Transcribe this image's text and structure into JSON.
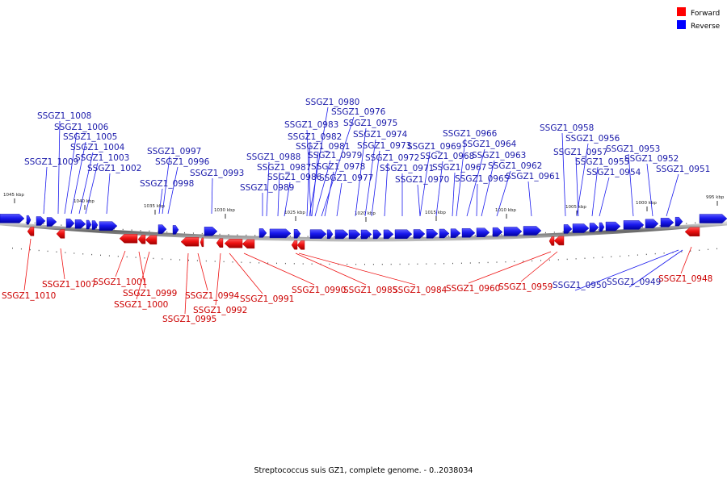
{
  "caption": "Streptococcus suis GZ1, complete genome. - 0..2038034",
  "legend": [
    {
      "label": "Forward",
      "color": "#ff0000"
    },
    {
      "label": "Reverse",
      "color": "#0000ff"
    }
  ],
  "colors": {
    "forward": "#ee1111",
    "reverse": "#1a1aee",
    "forward_label": "#cc0000",
    "reverse_label": "#1a1aaa",
    "backbone": "#777777"
  },
  "scale_ticks": [
    "1045 kbp",
    "1040 kbp",
    "1035 kbp",
    "1030 kbp",
    "1025 kbp",
    "1020 kbp",
    "1015 kbp",
    "1010 kbp",
    "1005 kbp",
    "1000 kbp",
    "995 kbp"
  ],
  "reverse_labels": [
    "SSGZ1_1008",
    "SSGZ1_1006",
    "SSGZ1_1005",
    "SSGZ1_1004",
    "SSGZ1_1003",
    "SSGZ1_1009",
    "SSGZ1_1002",
    "SSGZ1_0997",
    "SSGZ1_0996",
    "SSGZ1_0998",
    "SSGZ1_0993",
    "SSGZ1_0980",
    "SSGZ1_0976",
    "SSGZ1_0983",
    "SSGZ1_0975",
    "SSGZ1_0982",
    "SSGZ1_0974",
    "SSGZ1_0981",
    "SSGZ1_0973",
    "SSGZ1_0988",
    "SSGZ1_0979",
    "SSGZ1_0972",
    "SSGZ1_0969",
    "SSGZ1_0968",
    "SSGZ1_0987",
    "SSGZ1_0978",
    "SSGZ1_0971",
    "SSGZ1_0967",
    "SSGZ1_0986",
    "SSGZ1_0977",
    "SSGZ1_0970",
    "SSGZ1_0965",
    "SSGZ1_0989",
    "SSGZ1_0966",
    "SSGZ1_0964",
    "SSGZ1_0963",
    "SSGZ1_0962",
    "SSGZ1_0961",
    "SSGZ1_0958",
    "SSGZ1_0956",
    "SSGZ1_0957",
    "SSGZ1_0953",
    "SSGZ1_0955",
    "SSGZ1_0952",
    "SSGZ1_0954",
    "SSGZ1_0951",
    "SSGZ1_0950",
    "SSGZ1_0949"
  ],
  "forward_labels": [
    "SSGZ1_1010",
    "SSGZ1_1007",
    "SSGZ1_1001",
    "SSGZ1_0999",
    "SSGZ1_1000",
    "SSGZ1_0994",
    "SSGZ1_0995",
    "SSGZ1_0992",
    "SSGZ1_0991",
    "SSGZ1_0990",
    "SSGZ1_0985",
    "SSGZ1_0984",
    "SSGZ1_0960",
    "SSGZ1_0959",
    "SSGZ1_0948"
  ]
}
